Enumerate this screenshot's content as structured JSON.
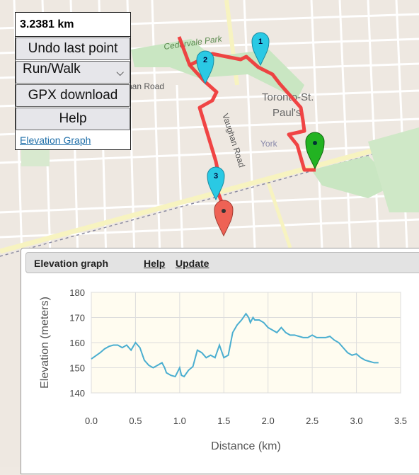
{
  "map": {
    "labels": {
      "park": "Cedarvale Park",
      "road1": "Vaughan Road",
      "road2": "han Road",
      "place1": "Toronto-St.",
      "place2": "Paul's",
      "york": "York"
    },
    "markers": [
      {
        "label": "1",
        "color": "#2ac9e4"
      },
      {
        "label": "2",
        "color": "#2ac9e4"
      },
      {
        "label": "3",
        "color": "#2ac9e4"
      }
    ],
    "colors": {
      "route": "#ef3b3b",
      "start": "#22b322",
      "end": "#ee6255",
      "waypoint": "#2ac9e4"
    }
  },
  "controls": {
    "distance": "3.2381 km",
    "undo_label": "Undo last point",
    "mode_value": "Run/Walk",
    "gpx_label": "GPX download",
    "help_label": "Help",
    "elevation_link": "Elevation Graph"
  },
  "elevation_panel": {
    "title": "Elevation graph",
    "help_link": "Help",
    "update_link": "Update"
  },
  "chart_data": {
    "type": "line",
    "xlabel": "Distance (km)",
    "ylabel": "Elevation (meters)",
    "xlim": [
      0,
      3.5
    ],
    "ylim": [
      140,
      180
    ],
    "xticks": [
      "0.0",
      "0.5",
      "1.0",
      "1.5",
      "2.0",
      "2.5",
      "3.0",
      "3.5"
    ],
    "yticks": [
      "140",
      "150",
      "160",
      "170",
      "180"
    ],
    "grid": true,
    "color": "#4aaed0",
    "series": [
      {
        "x": [
          0.0,
          0.1,
          0.15,
          0.2,
          0.25,
          0.3,
          0.35,
          0.4,
          0.45,
          0.5,
          0.55,
          0.6,
          0.65,
          0.7,
          0.75,
          0.8,
          0.83,
          0.85,
          0.9,
          0.95,
          1.0,
          1.02,
          1.05,
          1.1,
          1.15,
          1.2,
          1.25,
          1.3,
          1.35,
          1.4,
          1.45,
          1.5,
          1.55,
          1.6,
          1.65,
          1.7,
          1.75,
          1.78,
          1.8,
          1.83,
          1.85,
          1.9,
          1.95,
          2.0,
          2.05,
          2.1,
          2.15,
          2.2,
          2.25,
          2.3,
          2.35,
          2.4,
          2.45,
          2.5,
          2.55,
          2.6,
          2.65,
          2.7,
          2.75,
          2.8,
          2.85,
          2.9,
          2.95,
          3.0,
          3.05,
          3.1,
          3.15,
          3.2,
          3.25
        ],
        "y": [
          153.5,
          156,
          157.5,
          158.5,
          159,
          159,
          158,
          159,
          157,
          160,
          158,
          153,
          151,
          150,
          151,
          152,
          150,
          148,
          147,
          146.5,
          150,
          147,
          146.5,
          149,
          150.5,
          157,
          156,
          154,
          155,
          154,
          159,
          154,
          155,
          164,
          167,
          169,
          171.5,
          170,
          168,
          170,
          169,
          169,
          168,
          166,
          165,
          164,
          166,
          164,
          163,
          163,
          162.5,
          162,
          162,
          163,
          162,
          162,
          162,
          162.5,
          161,
          160,
          158,
          156,
          155,
          155.5,
          154,
          153,
          152.5,
          152,
          152
        ]
      }
    ]
  }
}
